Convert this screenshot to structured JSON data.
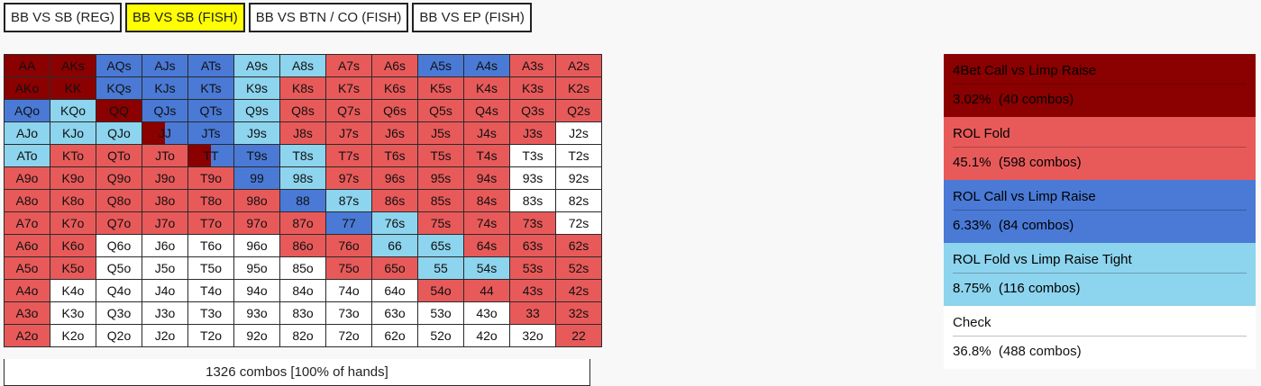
{
  "colors": {
    "darkred": "#8b0000",
    "red": "#e85a5a",
    "blue": "#4a7ad6",
    "lightblue": "#8dd4ee",
    "white": "#ffffff",
    "tab_active": "#ffff00"
  },
  "tabs": [
    {
      "label": "BB VS SB (REG)",
      "active": false
    },
    {
      "label": "BB VS SB (FISH)",
      "active": true
    },
    {
      "label": "BB VS BTN / CO (FISH)",
      "active": false
    },
    {
      "label": "BB VS EP (FISH)",
      "active": false
    }
  ],
  "grid": {
    "rows": [
      [
        [
          "AA",
          "darkred"
        ],
        [
          "AKs",
          "darkred"
        ],
        [
          "AQs",
          "blue"
        ],
        [
          "AJs",
          "blue"
        ],
        [
          "ATs",
          "blue"
        ],
        [
          "A9s",
          "lightblue"
        ],
        [
          "A8s",
          "lightblue"
        ],
        [
          "A7s",
          "red"
        ],
        [
          "A6s",
          "red"
        ],
        [
          "A5s",
          "blue"
        ],
        [
          "A4s",
          "blue"
        ],
        [
          "A3s",
          "red"
        ],
        [
          "A2s",
          "red"
        ]
      ],
      [
        [
          "AKo",
          "darkred"
        ],
        [
          "KK",
          "darkred"
        ],
        [
          "KQs",
          "blue"
        ],
        [
          "KJs",
          "blue"
        ],
        [
          "KTs",
          "blue"
        ],
        [
          "K9s",
          "lightblue"
        ],
        [
          "K8s",
          "red"
        ],
        [
          "K7s",
          "red"
        ],
        [
          "K6s",
          "red"
        ],
        [
          "K5s",
          "red"
        ],
        [
          "K4s",
          "red"
        ],
        [
          "K3s",
          "red"
        ],
        [
          "K2s",
          "red"
        ]
      ],
      [
        [
          "AQo",
          "blue"
        ],
        [
          "KQo",
          "lightblue"
        ],
        [
          "QQ",
          "darkred"
        ],
        [
          "QJs",
          "blue"
        ],
        [
          "QTs",
          "blue"
        ],
        [
          "Q9s",
          "lightblue"
        ],
        [
          "Q8s",
          "red"
        ],
        [
          "Q7s",
          "red"
        ],
        [
          "Q6s",
          "red"
        ],
        [
          "Q5s",
          "red"
        ],
        [
          "Q4s",
          "red"
        ],
        [
          "Q3s",
          "red"
        ],
        [
          "Q2s",
          "red"
        ]
      ],
      [
        [
          "AJo",
          "lightblue"
        ],
        [
          "KJo",
          "lightblue"
        ],
        [
          "QJo",
          "lightblue"
        ],
        [
          "JJ",
          "blue",
          "darkred",
          0.5
        ],
        [
          "JTs",
          "blue"
        ],
        [
          "J9s",
          "lightblue"
        ],
        [
          "J8s",
          "red"
        ],
        [
          "J7s",
          "red"
        ],
        [
          "J6s",
          "red"
        ],
        [
          "J5s",
          "red"
        ],
        [
          "J4s",
          "red"
        ],
        [
          "J3s",
          "red"
        ],
        [
          "J2s",
          "white"
        ]
      ],
      [
        [
          "ATo",
          "lightblue"
        ],
        [
          "KTo",
          "red"
        ],
        [
          "QTo",
          "red"
        ],
        [
          "JTo",
          "red"
        ],
        [
          "TT",
          "blue",
          "darkred",
          0.5
        ],
        [
          "T9s",
          "blue"
        ],
        [
          "T8s",
          "lightblue"
        ],
        [
          "T7s",
          "red"
        ],
        [
          "T6s",
          "red"
        ],
        [
          "T5s",
          "red"
        ],
        [
          "T4s",
          "red"
        ],
        [
          "T3s",
          "white"
        ],
        [
          "T2s",
          "white"
        ]
      ],
      [
        [
          "A9o",
          "red"
        ],
        [
          "K9o",
          "red"
        ],
        [
          "Q9o",
          "red"
        ],
        [
          "J9o",
          "red"
        ],
        [
          "T9o",
          "red"
        ],
        [
          "99",
          "blue"
        ],
        [
          "98s",
          "lightblue"
        ],
        [
          "97s",
          "red"
        ],
        [
          "96s",
          "red"
        ],
        [
          "95s",
          "red"
        ],
        [
          "94s",
          "red"
        ],
        [
          "93s",
          "white"
        ],
        [
          "92s",
          "white"
        ]
      ],
      [
        [
          "A8o",
          "red"
        ],
        [
          "K8o",
          "red"
        ],
        [
          "Q8o",
          "red"
        ],
        [
          "J8o",
          "red"
        ],
        [
          "T8o",
          "red"
        ],
        [
          "98o",
          "red"
        ],
        [
          "88",
          "blue"
        ],
        [
          "87s",
          "lightblue"
        ],
        [
          "86s",
          "red"
        ],
        [
          "85s",
          "red"
        ],
        [
          "84s",
          "red"
        ],
        [
          "83s",
          "white"
        ],
        [
          "82s",
          "white"
        ]
      ],
      [
        [
          "A7o",
          "red"
        ],
        [
          "K7o",
          "red"
        ],
        [
          "Q7o",
          "red"
        ],
        [
          "J7o",
          "red"
        ],
        [
          "T7o",
          "red"
        ],
        [
          "97o",
          "red"
        ],
        [
          "87o",
          "red"
        ],
        [
          "77",
          "blue"
        ],
        [
          "76s",
          "lightblue"
        ],
        [
          "75s",
          "red"
        ],
        [
          "74s",
          "red"
        ],
        [
          "73s",
          "red"
        ],
        [
          "72s",
          "white"
        ]
      ],
      [
        [
          "A6o",
          "red"
        ],
        [
          "K6o",
          "red"
        ],
        [
          "Q6o",
          "white"
        ],
        [
          "J6o",
          "white"
        ],
        [
          "T6o",
          "white"
        ],
        [
          "96o",
          "white"
        ],
        [
          "86o",
          "red"
        ],
        [
          "76o",
          "red"
        ],
        [
          "66",
          "lightblue"
        ],
        [
          "65s",
          "lightblue"
        ],
        [
          "64s",
          "red"
        ],
        [
          "63s",
          "red"
        ],
        [
          "62s",
          "red"
        ]
      ],
      [
        [
          "A5o",
          "red"
        ],
        [
          "K5o",
          "red"
        ],
        [
          "Q5o",
          "white"
        ],
        [
          "J5o",
          "white"
        ],
        [
          "T5o",
          "white"
        ],
        [
          "95o",
          "white"
        ],
        [
          "85o",
          "white"
        ],
        [
          "75o",
          "red"
        ],
        [
          "65o",
          "red"
        ],
        [
          "55",
          "lightblue"
        ],
        [
          "54s",
          "lightblue"
        ],
        [
          "53s",
          "red"
        ],
        [
          "52s",
          "red"
        ]
      ],
      [
        [
          "A4o",
          "red"
        ],
        [
          "K4o",
          "white"
        ],
        [
          "Q4o",
          "white"
        ],
        [
          "J4o",
          "white"
        ],
        [
          "T4o",
          "white"
        ],
        [
          "94o",
          "white"
        ],
        [
          "84o",
          "white"
        ],
        [
          "74o",
          "white"
        ],
        [
          "64o",
          "white"
        ],
        [
          "54o",
          "red"
        ],
        [
          "44",
          "red"
        ],
        [
          "43s",
          "red"
        ],
        [
          "42s",
          "red"
        ]
      ],
      [
        [
          "A3o",
          "red"
        ],
        [
          "K3o",
          "white"
        ],
        [
          "Q3o",
          "white"
        ],
        [
          "J3o",
          "white"
        ],
        [
          "T3o",
          "white"
        ],
        [
          "93o",
          "white"
        ],
        [
          "83o",
          "white"
        ],
        [
          "73o",
          "white"
        ],
        [
          "63o",
          "white"
        ],
        [
          "53o",
          "white"
        ],
        [
          "43o",
          "white"
        ],
        [
          "33",
          "red"
        ],
        [
          "32s",
          "red"
        ]
      ],
      [
        [
          "A2o",
          "red"
        ],
        [
          "K2o",
          "white"
        ],
        [
          "Q2o",
          "white"
        ],
        [
          "J2o",
          "white"
        ],
        [
          "T2o",
          "white"
        ],
        [
          "92o",
          "white"
        ],
        [
          "82o",
          "white"
        ],
        [
          "72o",
          "white"
        ],
        [
          "62o",
          "white"
        ],
        [
          "52o",
          "white"
        ],
        [
          "42o",
          "white"
        ],
        [
          "32o",
          "white"
        ],
        [
          "22",
          "red"
        ]
      ]
    ]
  },
  "footer": {
    "text": "1326 combos [100% of hands]"
  },
  "legend": [
    {
      "name": "4Bet Call vs Limp Raise",
      "stat": "3.02%  (40 combos)",
      "color": "darkred"
    },
    {
      "name": "ROL Fold",
      "stat": "45.1%  (598 combos)",
      "color": "red"
    },
    {
      "name": "ROL Call vs Limp Raise",
      "stat": "6.33%  (84 combos)",
      "color": "blue"
    },
    {
      "name": "ROL Fold vs Limp Raise Tight",
      "stat": "8.75%  (116 combos)",
      "color": "lightblue"
    },
    {
      "name": "Check",
      "stat": "36.8%  (488 combos)",
      "color": "white"
    }
  ]
}
